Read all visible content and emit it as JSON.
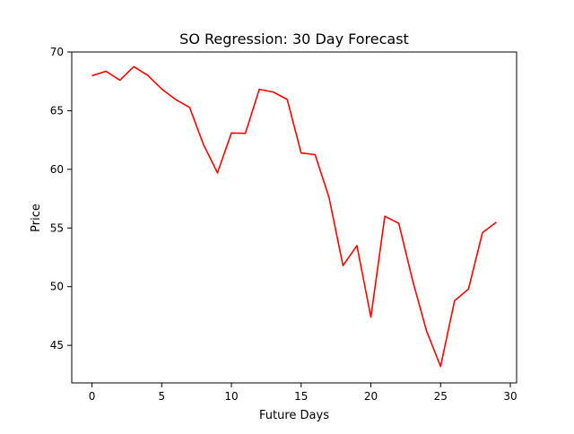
{
  "chart_data": {
    "type": "line",
    "title": "SO Regression: 30 Day Forecast",
    "xlabel": "Future Days",
    "ylabel": "Price",
    "xlim": [
      -1.45,
      30.45
    ],
    "ylim": [
      41.8,
      70
    ],
    "xticks": [
      0,
      5,
      10,
      15,
      20,
      25,
      30
    ],
    "yticks": [
      45,
      50,
      55,
      60,
      65,
      70
    ],
    "grid": false,
    "legend": "none",
    "series": [
      {
        "color": "#ff0000",
        "x": [
          0,
          1,
          2,
          3,
          4,
          5,
          6,
          7,
          8,
          9,
          10,
          11,
          12,
          13,
          14,
          15,
          16,
          17,
          18,
          19,
          20,
          21,
          22,
          23,
          24,
          25,
          26,
          27,
          28,
          29
        ],
        "y": [
          67.98,
          68.36,
          67.6,
          68.75,
          68.01,
          66.85,
          65.95,
          65.28,
          62.1,
          59.7,
          63.1,
          63.07,
          66.82,
          66.59,
          65.96,
          61.4,
          61.25,
          57.6,
          51.8,
          53.5,
          47.4,
          56.0,
          55.4,
          50.5,
          46.2,
          43.2,
          48.8,
          49.8,
          54.6,
          55.5
        ]
      }
    ]
  }
}
